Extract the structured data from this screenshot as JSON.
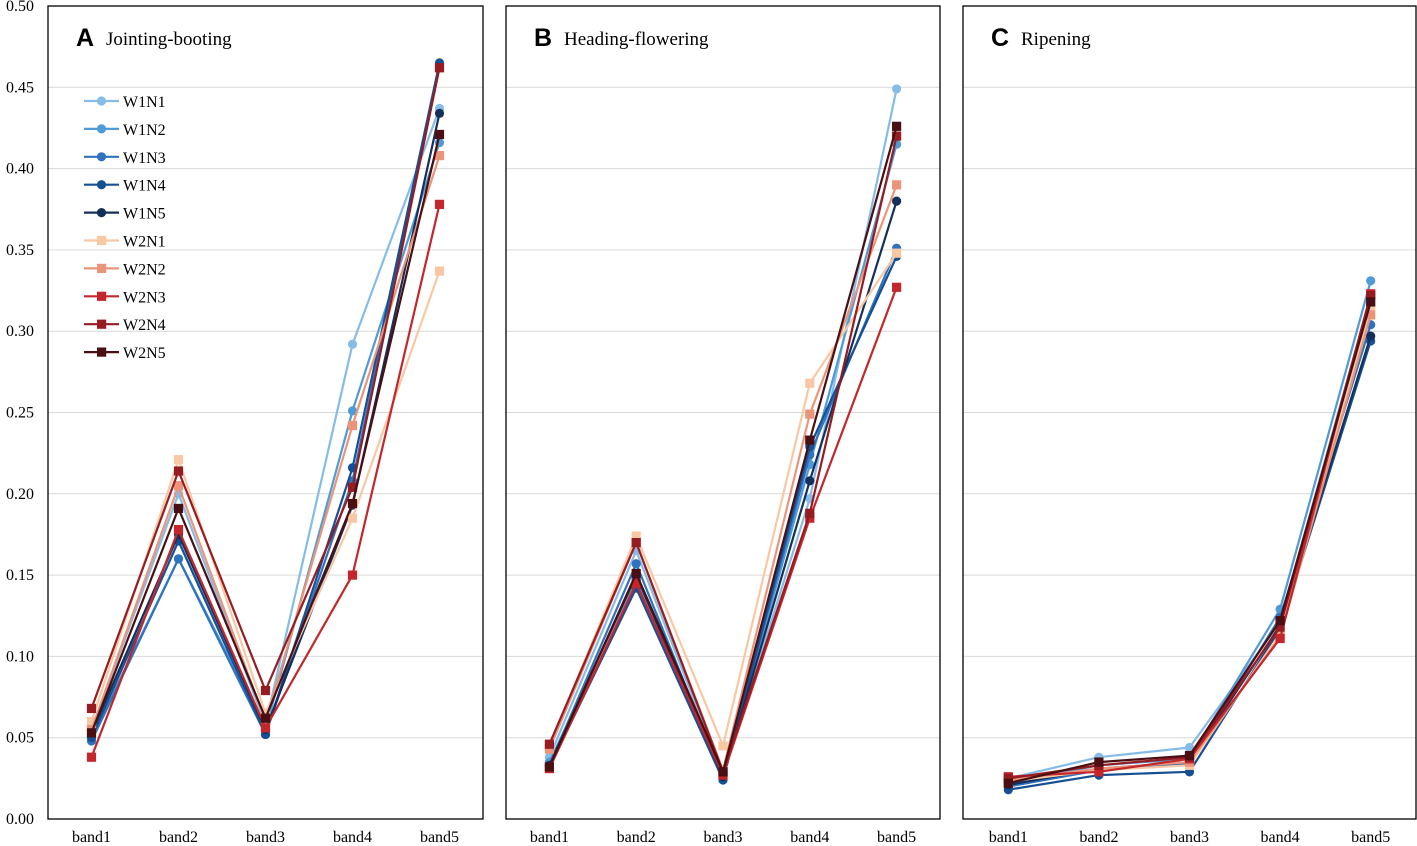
{
  "chart_data": {
    "type": "line",
    "categories": [
      "band1",
      "band2",
      "band3",
      "band4",
      "band5"
    ],
    "ylim": [
      0,
      0.5
    ],
    "yticks": [
      "0.00",
      "0.05",
      "0.10",
      "0.15",
      "0.20",
      "0.25",
      "0.30",
      "0.35",
      "0.40",
      "0.45",
      "0.50"
    ],
    "grid": true,
    "legend_position": "top-left of panel A",
    "series_styles": [
      {
        "name": "W1N1",
        "color": "#86bce8",
        "marker": "circle"
      },
      {
        "name": "W1N2",
        "color": "#4f9bd5",
        "marker": "circle"
      },
      {
        "name": "W1N3",
        "color": "#2f72bd",
        "marker": "circle"
      },
      {
        "name": "W1N4",
        "color": "#174f93",
        "marker": "circle"
      },
      {
        "name": "W1N5",
        "color": "#15305a",
        "marker": "circle"
      },
      {
        "name": "W2N1",
        "color": "#f8c8a4",
        "marker": "square"
      },
      {
        "name": "W2N2",
        "color": "#ea957a",
        "marker": "square"
      },
      {
        "name": "W2N3",
        "color": "#c3272c",
        "marker": "square"
      },
      {
        "name": "W2N4",
        "color": "#961c21",
        "marker": "square"
      },
      {
        "name": "W2N5",
        "color": "#4a0f12",
        "marker": "square"
      }
    ],
    "panels": [
      {
        "letter": "A",
        "title": "Jointing-booting",
        "series": [
          {
            "name": "W1N1",
            "values": [
              0.055,
              0.2,
              0.058,
              0.292,
              0.437
            ]
          },
          {
            "name": "W1N2",
            "values": [
              0.05,
              0.16,
              0.055,
              0.251,
              0.416
            ]
          },
          {
            "name": "W1N3",
            "values": [
              0.048,
              0.16,
              0.052,
              0.208,
              0.464
            ]
          },
          {
            "name": "W1N4",
            "values": [
              0.05,
              0.171,
              0.052,
              0.216,
              0.465
            ]
          },
          {
            "name": "W1N5",
            "values": [
              0.053,
              0.175,
              0.055,
              0.193,
              0.434
            ]
          },
          {
            "name": "W2N1",
            "values": [
              0.06,
              0.221,
              0.065,
              0.185,
              0.337
            ]
          },
          {
            "name": "W2N2",
            "values": [
              0.055,
              0.205,
              0.06,
              0.242,
              0.408
            ]
          },
          {
            "name": "W2N3",
            "values": [
              0.038,
              0.178,
              0.056,
              0.15,
              0.378
            ]
          },
          {
            "name": "W2N4",
            "values": [
              0.068,
              0.214,
              0.079,
              0.204,
              0.462
            ]
          },
          {
            "name": "W2N5",
            "values": [
              0.053,
              0.191,
              0.062,
              0.194,
              0.421
            ]
          }
        ]
      },
      {
        "letter": "B",
        "title": "Heading-flowering",
        "series": [
          {
            "name": "W1N1",
            "values": [
              0.038,
              0.165,
              0.027,
              0.197,
              0.449
            ]
          },
          {
            "name": "W1N2",
            "values": [
              0.035,
              0.148,
              0.025,
              0.218,
              0.415
            ]
          },
          {
            "name": "W1N3",
            "values": [
              0.033,
              0.157,
              0.025,
              0.224,
              0.351
            ]
          },
          {
            "name": "W1N4",
            "values": [
              0.032,
              0.142,
              0.024,
              0.229,
              0.346
            ]
          },
          {
            "name": "W1N5",
            "values": [
              0.033,
              0.15,
              0.026,
              0.208,
              0.38
            ]
          },
          {
            "name": "W2N1",
            "values": [
              0.045,
              0.174,
              0.045,
              0.268,
              0.348
            ]
          },
          {
            "name": "W2N2",
            "values": [
              0.043,
              0.17,
              0.03,
              0.249,
              0.39
            ]
          },
          {
            "name": "W2N3",
            "values": [
              0.031,
              0.145,
              0.027,
              0.185,
              0.327
            ]
          },
          {
            "name": "W2N4",
            "values": [
              0.046,
              0.17,
              0.029,
              0.188,
              0.42
            ]
          },
          {
            "name": "W2N5",
            "values": [
              0.032,
              0.151,
              0.029,
              0.233,
              0.426
            ]
          }
        ]
      },
      {
        "letter": "C",
        "title": "Ripening",
        "series": [
          {
            "name": "W1N1",
            "values": [
              0.025,
              0.038,
              0.044,
              0.121,
              0.322
            ]
          },
          {
            "name": "W1N2",
            "values": [
              0.022,
              0.033,
              0.037,
              0.129,
              0.331
            ]
          },
          {
            "name": "W1N3",
            "values": [
              0.02,
              0.03,
              0.034,
              0.124,
              0.304
            ]
          },
          {
            "name": "W1N4",
            "values": [
              0.018,
              0.027,
              0.029,
              0.117,
              0.294
            ]
          },
          {
            "name": "W1N5",
            "values": [
              0.021,
              0.031,
              0.035,
              0.119,
              0.297
            ]
          },
          {
            "name": "W2N1",
            "values": [
              0.023,
              0.03,
              0.033,
              0.114,
              0.315
            ]
          },
          {
            "name": "W2N2",
            "values": [
              0.024,
              0.031,
              0.035,
              0.112,
              0.31
            ]
          },
          {
            "name": "W2N3",
            "values": [
              0.026,
              0.029,
              0.037,
              0.111,
              0.323
            ]
          },
          {
            "name": "W2N4",
            "values": [
              0.025,
              0.033,
              0.038,
              0.118,
              0.322
            ]
          },
          {
            "name": "W2N5",
            "values": [
              0.022,
              0.035,
              0.039,
              0.122,
              0.318
            ]
          }
        ]
      }
    ]
  }
}
